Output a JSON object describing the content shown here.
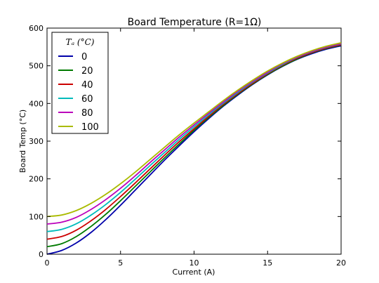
{
  "chart_data": {
    "type": "line",
    "title": "Board Temperature (R=1Ω)",
    "xlabel": "Current (A)",
    "ylabel": "Board Temp (°C)",
    "xlim": [
      0,
      20
    ],
    "ylim": [
      0,
      600
    ],
    "xticks": [
      "0",
      "5",
      "10",
      "15",
      "20"
    ],
    "yticks": [
      "0",
      "100",
      "200",
      "300",
      "400",
      "500",
      "600"
    ],
    "grid": false,
    "legend_title": "Tₐ (°C)",
    "legend_position": "top-left",
    "x": [
      0,
      1,
      2,
      3,
      4,
      5,
      6,
      7,
      8,
      9,
      10,
      11,
      12,
      13,
      14,
      15,
      16,
      17,
      18,
      19,
      20
    ],
    "series": [
      {
        "name": "0",
        "color": "#0000aa",
        "values": [
          0,
          10,
          30,
          58,
          92,
          130,
          170,
          210,
          250,
          288,
          325,
          360,
          393,
          423,
          451,
          476,
          498,
          517,
          532,
          544,
          553
        ]
      },
      {
        "name": "20",
        "color": "#007a00",
        "values": [
          20,
          28,
          47,
          74,
          106,
          142,
          180,
          218,
          256,
          293,
          329,
          363,
          395,
          425,
          452,
          477,
          499,
          518,
          534,
          546,
          555
        ]
      },
      {
        "name": "40",
        "color": "#cc0000",
        "values": [
          40,
          47,
          64,
          89,
          119,
          153,
          189,
          226,
          263,
          299,
          333,
          366,
          398,
          427,
          454,
          479,
          501,
          520,
          535,
          547,
          556
        ]
      },
      {
        "name": "60",
        "color": "#00bbbb",
        "values": [
          60,
          66,
          81,
          104,
          132,
          164,
          199,
          235,
          270,
          305,
          338,
          370,
          401,
          430,
          457,
          481,
          503,
          522,
          537,
          549,
          558
        ]
      },
      {
        "name": "80",
        "color": "#bb00bb",
        "values": [
          80,
          85,
          98,
          119,
          145,
          175,
          208,
          243,
          277,
          311,
          343,
          374,
          404,
          433,
          459,
          483,
          505,
          523,
          538,
          550,
          559
        ]
      },
      {
        "name": "100",
        "color": "#aabb00",
        "values": [
          100,
          104,
          116,
          135,
          159,
          187,
          218,
          251,
          284,
          317,
          348,
          378,
          408,
          436,
          462,
          486,
          507,
          525,
          540,
          552,
          561
        ]
      }
    ]
  }
}
